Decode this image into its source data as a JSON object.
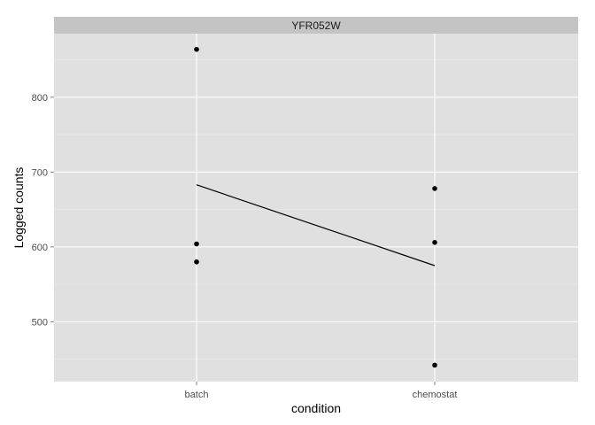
{
  "chart_data": {
    "type": "scatter",
    "facet_label": "YFR052W",
    "xlabel": "condition",
    "ylabel": "Logged counts",
    "categories": [
      "batch",
      "chemostat"
    ],
    "points": [
      {
        "x": "batch",
        "y": 864
      },
      {
        "x": "batch",
        "y": 604
      },
      {
        "x": "batch",
        "y": 580
      },
      {
        "x": "chemostat",
        "y": 678
      },
      {
        "x": "chemostat",
        "y": 606
      },
      {
        "x": "chemostat",
        "y": 442
      }
    ],
    "mean_line": [
      {
        "x": "batch",
        "y": 683
      },
      {
        "x": "chemostat",
        "y": 575
      }
    ],
    "y_ticks": [
      500,
      600,
      700,
      800
    ],
    "ylim": [
      420,
      885
    ],
    "grid": true,
    "colors": {
      "panel_bg": "#e0e0e0",
      "strip_bg": "#c4c4c4",
      "grid_major": "#ffffff",
      "grid_minor": "#ebebeb",
      "point": "#000000",
      "line": "#000000"
    }
  }
}
